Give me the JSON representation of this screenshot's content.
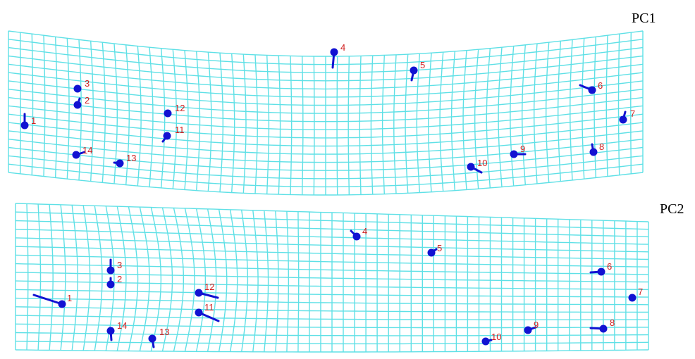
{
  "colors": {
    "grid": "#5fe0e6",
    "landmark": "#1212d2",
    "label": "#d02020"
  },
  "panels": [
    {
      "title": "PC1",
      "landmarks": [
        {
          "id": "1"
        },
        {
          "id": "2"
        },
        {
          "id": "3"
        },
        {
          "id": "4"
        },
        {
          "id": "5"
        },
        {
          "id": "6"
        },
        {
          "id": "7"
        },
        {
          "id": "8"
        },
        {
          "id": "9"
        },
        {
          "id": "10"
        },
        {
          "id": "11"
        },
        {
          "id": "12"
        },
        {
          "id": "13"
        },
        {
          "id": "14"
        }
      ]
    },
    {
      "title": "PC2",
      "landmarks": [
        {
          "id": "1"
        },
        {
          "id": "2"
        },
        {
          "id": "3"
        },
        {
          "id": "4"
        },
        {
          "id": "5"
        },
        {
          "id": "6"
        },
        {
          "id": "7"
        },
        {
          "id": "8"
        },
        {
          "id": "9"
        },
        {
          "id": "10"
        },
        {
          "id": "11"
        },
        {
          "id": "12"
        },
        {
          "id": "13"
        },
        {
          "id": "14"
        }
      ]
    }
  ]
}
